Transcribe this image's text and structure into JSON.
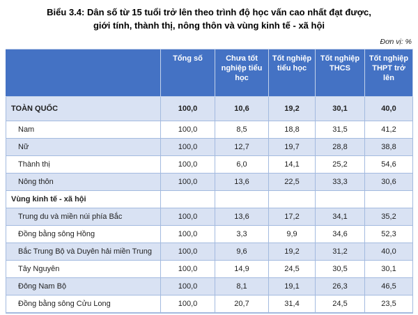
{
  "title": {
    "line1": "Biểu 3.4: Dân số từ 15 tuổi trở lên theo trình độ học vấn cao nhất đạt được,",
    "line2": "giới tính, thành thị, nông thôn và vùng kinh tế - xã hội"
  },
  "unit_label": "Đơn vị: %",
  "colors": {
    "header_bg": "#4472C4",
    "header_text": "#FFFFFF",
    "header_border": "#C3D2EB",
    "band_bg": "#D9E2F3",
    "border": "#A3BADF",
    "body_text": "#1F1F1F"
  },
  "table": {
    "columns": [
      "",
      "Tổng số",
      "Chưa tốt nghiệp tiểu học",
      "Tốt nghiệp tiểu học",
      "Tốt nghiệp THCS",
      "Tốt nghiệp THPT trở lên"
    ],
    "rows": [
      {
        "label": "TOÀN QUỐC",
        "values": [
          "100,0",
          "10,6",
          "19,2",
          "30,1",
          "40,0"
        ]
      },
      {
        "label": "Nam",
        "values": [
          "100,0",
          "8,5",
          "18,8",
          "31,5",
          "41,2"
        ]
      },
      {
        "label": "Nữ",
        "values": [
          "100,0",
          "12,7",
          "19,7",
          "28,8",
          "38,8"
        ]
      },
      {
        "label": "Thành thị",
        "values": [
          "100,0",
          "6,0",
          "14,1",
          "25,2",
          "54,6"
        ]
      },
      {
        "label": "Nông thôn",
        "values": [
          "100,0",
          "13,6",
          "22,5",
          "33,3",
          "30,6"
        ]
      },
      {
        "label": "Vùng kinh tế - xã hội",
        "values": [
          "",
          "",
          "",
          "",
          ""
        ]
      },
      {
        "label": "Trung du và miền núi phía Bắc",
        "values": [
          "100,0",
          "13,6",
          "17,2",
          "34,1",
          "35,2"
        ]
      },
      {
        "label": "Đồng bằng sông Hồng",
        "values": [
          "100,0",
          "3,3",
          "9,9",
          "34,6",
          "52,3"
        ]
      },
      {
        "label": "Bắc Trung Bộ và Duyên hải miền Trung",
        "values": [
          "100,0",
          "9,6",
          "19,2",
          "31,2",
          "40,0"
        ]
      },
      {
        "label": "Tây Nguyên",
        "values": [
          "100,0",
          "14,9",
          "24,5",
          "30,5",
          "30,1"
        ]
      },
      {
        "label": "Đông Nam Bộ",
        "values": [
          "100,0",
          "8,1",
          "19,1",
          "26,3",
          "46,5"
        ]
      },
      {
        "label": "Đồng bằng sông Cửu Long",
        "values": [
          "100,0",
          "20,7",
          "31,4",
          "24,5",
          "23,5"
        ]
      }
    ]
  }
}
